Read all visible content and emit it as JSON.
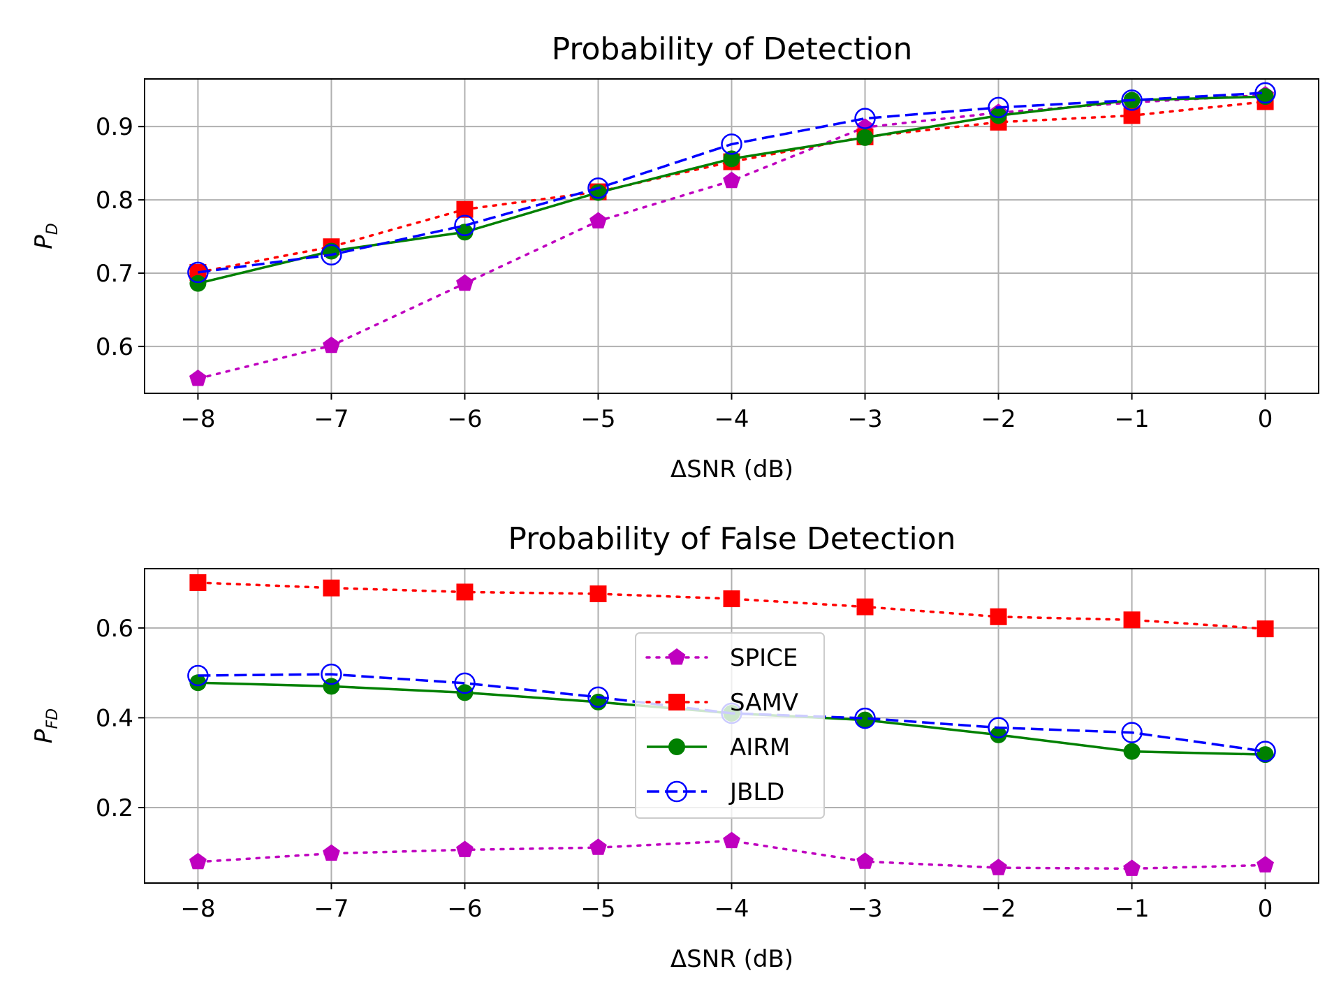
{
  "chart_data": [
    {
      "type": "line",
      "title": "Probability of Detection",
      "xlabel": "ΔSNR (dB)",
      "ylabel": {
        "main": "P",
        "sub": "D"
      },
      "x": [
        -8,
        -7,
        -6,
        -5,
        -4,
        -3,
        -2,
        -1,
        0
      ],
      "xticks": [
        "−8",
        "−7",
        "−6",
        "−5",
        "−4",
        "−3",
        "−2",
        "−1",
        "0"
      ],
      "yticks": [
        {
          "value": 0.6,
          "label": "0.6"
        },
        {
          "value": 0.7,
          "label": "0.7"
        },
        {
          "value": 0.8,
          "label": "0.8"
        },
        {
          "value": 0.9,
          "label": "0.9"
        }
      ],
      "xlim": [
        -8.4,
        0.4
      ],
      "ylim": [
        0.536,
        0.965
      ],
      "grid": true,
      "series": [
        {
          "name": "SPICE",
          "color": "#bf00bf",
          "dash": "dotted",
          "marker": "pentagon",
          "values": [
            0.556,
            0.601,
            0.686,
            0.771,
            0.826,
            0.899,
            0.919,
            0.933,
            0.943
          ]
        },
        {
          "name": "SAMV",
          "color": "#ff0000",
          "dash": "dotted",
          "marker": "square",
          "values": [
            0.701,
            0.736,
            0.787,
            0.811,
            0.852,
            0.886,
            0.906,
            0.915,
            0.934
          ]
        },
        {
          "name": "AIRM",
          "color": "#008000",
          "dash": "solid",
          "marker": "circle",
          "values": [
            0.686,
            0.73,
            0.756,
            0.81,
            0.856,
            0.885,
            0.915,
            0.936,
            0.941
          ]
        },
        {
          "name": "JBLD",
          "color": "#0000ff",
          "dash": "dashed",
          "marker": "open-circle",
          "values": [
            0.701,
            0.725,
            0.765,
            0.816,
            0.876,
            0.911,
            0.926,
            0.936,
            0.946
          ]
        }
      ]
    },
    {
      "type": "line",
      "title": "Probability of False Detection",
      "xlabel": "ΔSNR (dB)",
      "ylabel": {
        "main": "P",
        "sub": "FD"
      },
      "x": [
        -8,
        -7,
        -6,
        -5,
        -4,
        -3,
        -2,
        -1,
        0
      ],
      "xticks": [
        "−8",
        "−7",
        "−6",
        "−5",
        "−4",
        "−3",
        "−2",
        "−1",
        "0"
      ],
      "yticks": [
        {
          "value": 0.2,
          "label": "0.2"
        },
        {
          "value": 0.4,
          "label": "0.4"
        },
        {
          "value": 0.6,
          "label": "0.6"
        }
      ],
      "xlim": [
        -8.4,
        0.4
      ],
      "ylim": [
        0.032,
        0.732
      ],
      "grid": true,
      "legend": {
        "position": "center",
        "entries": [
          "SPICE",
          "SAMV",
          "AIRM",
          "JBLD"
        ]
      },
      "series": [
        {
          "name": "SPICE",
          "color": "#bf00bf",
          "dash": "dotted",
          "marker": "pentagon",
          "values": [
            0.079,
            0.098,
            0.106,
            0.111,
            0.126,
            0.08,
            0.066,
            0.064,
            0.072
          ]
        },
        {
          "name": "SAMV",
          "color": "#ff0000",
          "dash": "dotted",
          "marker": "square",
          "values": [
            0.701,
            0.689,
            0.68,
            0.676,
            0.665,
            0.647,
            0.625,
            0.618,
            0.598
          ]
        },
        {
          "name": "AIRM",
          "color": "#008000",
          "dash": "solid",
          "marker": "circle",
          "values": [
            0.478,
            0.47,
            0.456,
            0.435,
            0.41,
            0.395,
            0.362,
            0.325,
            0.318
          ]
        },
        {
          "name": "JBLD",
          "color": "#0000ff",
          "dash": "dashed",
          "marker": "open-circle",
          "values": [
            0.494,
            0.497,
            0.477,
            0.446,
            0.41,
            0.399,
            0.378,
            0.367,
            0.325
          ]
        }
      ]
    }
  ]
}
